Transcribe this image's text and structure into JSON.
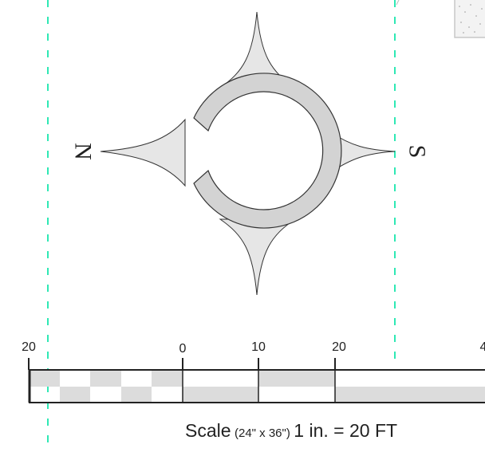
{
  "compass": {
    "north_label": "N",
    "south_label": "S",
    "fill_color": "#e6e6e6",
    "ring_color": "#d3d3d3"
  },
  "guide_line_color": "#2ee8b4",
  "scale_bar": {
    "tick_labels": [
      "20",
      "0",
      "10",
      "20",
      "4"
    ],
    "caption_prefix": "Scale",
    "caption_sheet": "(24\" x 36\")",
    "caption_ratio": "1 in. = 20 FT"
  }
}
